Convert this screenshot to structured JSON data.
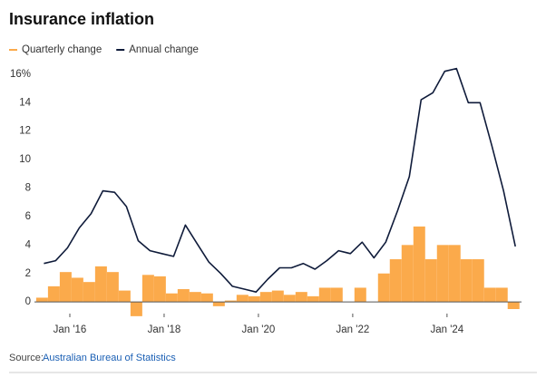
{
  "chart_data": {
    "type": "combo",
    "title": "Insurance inflation",
    "x": [
      2015.45,
      2015.7,
      2015.95,
      2016.2,
      2016.45,
      2016.7,
      2016.95,
      2017.2,
      2017.45,
      2017.7,
      2017.95,
      2018.2,
      2018.45,
      2018.7,
      2018.95,
      2019.2,
      2019.45,
      2019.7,
      2019.95,
      2020.2,
      2020.45,
      2020.7,
      2020.95,
      2021.2,
      2021.45,
      2021.7,
      2021.95,
      2022.2,
      2022.45,
      2022.7,
      2022.95,
      2023.2,
      2023.45,
      2023.7,
      2023.95,
      2024.2,
      2024.45,
      2024.7,
      2024.95,
      2025.2,
      2025.45
    ],
    "series": [
      {
        "name": "Quarterly change",
        "type": "bar",
        "color": "#fbaa4b",
        "values": [
          0.3,
          1.1,
          2.1,
          1.7,
          1.4,
          2.5,
          2.1,
          0.8,
          -1.0,
          1.9,
          1.8,
          0.6,
          0.9,
          0.7,
          0.6,
          -0.3,
          0.1,
          0.5,
          0.4,
          0.7,
          0.8,
          0.5,
          0.7,
          0.4,
          1.0,
          1.0,
          0,
          1.0,
          0,
          2.0,
          3.0,
          4.0,
          5.3,
          3.0,
          4.0,
          4.0,
          3.0,
          3.0,
          1.0,
          1.0,
          -0.5
        ]
      },
      {
        "name": "Annual change",
        "type": "line",
        "color": "#0f1b3a",
        "values": [
          2.7,
          2.9,
          3.8,
          5.2,
          6.2,
          7.8,
          7.7,
          6.7,
          4.3,
          3.6,
          3.4,
          3.2,
          5.4,
          4.1,
          2.8,
          2.0,
          1.1,
          0.9,
          0.7,
          1.6,
          2.4,
          2.4,
          2.7,
          2.3,
          2.9,
          3.6,
          3.4,
          4.2,
          3.1,
          4.2,
          6.4,
          8.8,
          14.2,
          14.7,
          16.2,
          16.4,
          14.0,
          14.0,
          11.0,
          7.8,
          3.9
        ]
      }
    ],
    "xlim": [
      2015.25,
      2025.58
    ],
    "xticks": [
      {
        "value": 2016,
        "label": "Jan '16"
      },
      {
        "value": 2018,
        "label": "Jan '18"
      },
      {
        "value": 2020,
        "label": "Jan '20"
      },
      {
        "value": 2022,
        "label": "Jan '22"
      },
      {
        "value": 2024,
        "label": "Jan '24"
      }
    ],
    "ylim": [
      -1.2,
      16.5
    ],
    "yticks": [
      0,
      2,
      4,
      6,
      8,
      10,
      12,
      14,
      {
        "value": 16,
        "label": "16%"
      }
    ],
    "grid": false,
    "source_label": "Source:",
    "source_link": "Australian Bureau of Statistics"
  }
}
